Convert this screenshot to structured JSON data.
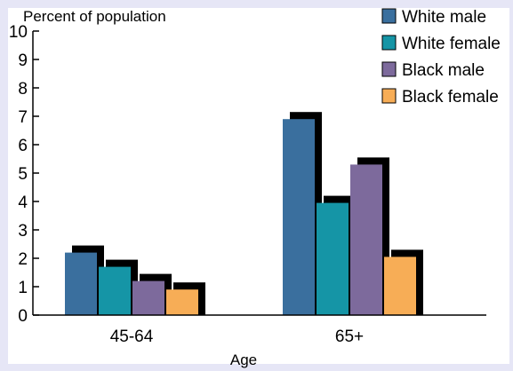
{
  "chart_data": {
    "type": "bar",
    "title": "",
    "ylabel": "Percent of population",
    "xlabel": "Age",
    "categories": [
      "45-64",
      "65+"
    ],
    "series": [
      {
        "name": "White male",
        "values": [
          2.2,
          6.9
        ],
        "color": "#3a6f9e"
      },
      {
        "name": "White female",
        "values": [
          1.7,
          3.95
        ],
        "color": "#1595a6"
      },
      {
        "name": "Black male",
        "values": [
          1.2,
          5.3
        ],
        "color": "#7d6a9c"
      },
      {
        "name": "Black female",
        "values": [
          0.9,
          2.05
        ],
        "color": "#f7ad56"
      }
    ],
    "ylim": [
      0,
      10
    ],
    "yticks": [
      0,
      1,
      2,
      3,
      4,
      5,
      6,
      7,
      8,
      9,
      10
    ],
    "grid": false,
    "legend_position": "top-right",
    "bar_style": "3d-shadow",
    "shadow_color": "#000000"
  }
}
